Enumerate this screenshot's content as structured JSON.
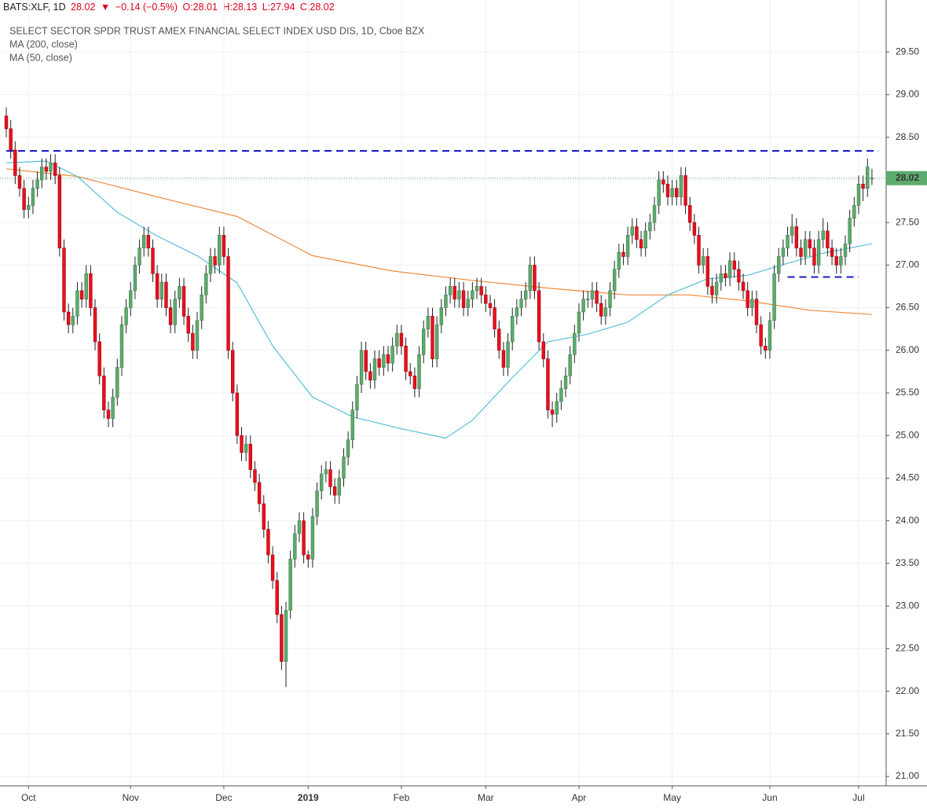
{
  "chart_data": {
    "type": "candlestick",
    "header": {
      "symbol": "BATS:XLF, 1D",
      "last": 28.02,
      "change": "−0.14 (−0.5%)",
      "open": "O:28.01",
      "high": "H:28.13",
      "low": "L:27.94",
      "close": "C:28.02"
    },
    "title": "SELECT SECTOR SPDR TRUST AMEX FINANCIAL SELECT INDEX USD DIS, 1D, Cboe BZX",
    "up_color": "#5dab6e",
    "down_color": "#e8101e",
    "grid": true,
    "xlim": [
      -1.42,
      198.2
    ],
    "ylim": [
      20.89,
      30.11
    ],
    "xticks": [
      {
        "value": 5,
        "label": "Oct"
      },
      {
        "value": 28,
        "label": "Nov"
      },
      {
        "value": 49,
        "label": "Dec"
      },
      {
        "value": 68,
        "label": "2019"
      },
      {
        "value": 89,
        "label": "Feb"
      },
      {
        "value": 108,
        "label": "Mar"
      },
      {
        "value": 129,
        "label": "Apr"
      },
      {
        "value": 150,
        "label": "May"
      },
      {
        "value": 172,
        "label": "Jun"
      },
      {
        "value": 192,
        "label": "Jul"
      }
    ],
    "yticks": [
      {
        "value": 21,
        "label": "21.00"
      },
      {
        "value": 21.5,
        "label": "21.50"
      },
      {
        "value": 22,
        "label": "22.00"
      },
      {
        "value": 22.5,
        "label": "22.50"
      },
      {
        "value": 23,
        "label": "23.00"
      },
      {
        "value": 23.5,
        "label": "23.50"
      },
      {
        "value": 24,
        "label": "24.00"
      },
      {
        "value": 24.5,
        "label": "24.50"
      },
      {
        "value": 25,
        "label": "25.00"
      },
      {
        "value": 25.5,
        "label": "25.50"
      },
      {
        "value": 26,
        "label": "26.00"
      },
      {
        "value": 26.5,
        "label": "26.50"
      },
      {
        "value": 27,
        "label": "27.00"
      },
      {
        "value": 27.5,
        "label": "27.50"
      },
      {
        "value": 28,
        "label": "28.00"
      },
      {
        "value": 28.5,
        "label": "28.50"
      },
      {
        "value": 29,
        "label": "29.00"
      },
      {
        "value": 29.5,
        "label": "29.50"
      }
    ],
    "series": [
      {
        "name": "MA (200, close)",
        "color": "#f08a3c",
        "x": [
          0,
          16,
          34,
          52,
          69,
          87,
          105,
          122,
          140,
          154,
          167,
          181,
          195
        ],
        "values": [
          28.13,
          28.04,
          27.8,
          27.57,
          27.11,
          26.93,
          26.82,
          26.73,
          26.65,
          26.65,
          26.58,
          26.47,
          26.42
        ]
      },
      {
        "name": "MA (50, close)",
        "color": "#56c0d8",
        "x": [
          0,
          9,
          16,
          25,
          34,
          43,
          52,
          60,
          69,
          78,
          89,
          99,
          105,
          114,
          122,
          131,
          140,
          149,
          158,
          167,
          176,
          184,
          195
        ],
        "values": [
          28.2,
          28.22,
          28.04,
          27.62,
          27.34,
          27.11,
          26.79,
          26.05,
          25.45,
          25.22,
          25.08,
          24.97,
          25.18,
          25.68,
          26.1,
          26.19,
          26.33,
          26.65,
          26.84,
          26.88,
          27.02,
          27.14,
          27.25
        ]
      }
    ],
    "levels": [
      {
        "value": 28.34,
        "from": 0,
        "to": 196.5,
        "color": "#1a1acc"
      },
      {
        "value": 26.86,
        "from": 176,
        "to": 192,
        "color": "#1a1acc"
      }
    ],
    "candles": [
      [
        28.75,
        28.85,
        28.5,
        28.6
      ],
      [
        28.6,
        28.7,
        28.25,
        28.35
      ],
      [
        28.35,
        28.45,
        27.95,
        28.05
      ],
      [
        28.05,
        28.15,
        27.8,
        27.9
      ],
      [
        27.9,
        28.0,
        27.55,
        27.65
      ],
      [
        27.65,
        27.8,
        27.55,
        27.7
      ],
      [
        27.7,
        28.0,
        27.6,
        27.9
      ],
      [
        27.9,
        28.1,
        27.8,
        28.0
      ],
      [
        28.0,
        28.25,
        27.9,
        28.15
      ],
      [
        28.15,
        28.25,
        28.0,
        28.1
      ],
      [
        28.1,
        28.3,
        28.0,
        28.2
      ],
      [
        28.2,
        28.3,
        27.95,
        28.05
      ],
      [
        28.05,
        28.15,
        27.1,
        27.2
      ],
      [
        27.2,
        27.3,
        26.35,
        26.45
      ],
      [
        26.45,
        26.55,
        26.2,
        26.3
      ],
      [
        26.3,
        26.5,
        26.2,
        26.4
      ],
      [
        26.4,
        26.8,
        26.3,
        26.7
      ],
      [
        26.7,
        26.8,
        26.5,
        26.6
      ],
      [
        26.6,
        27.0,
        26.5,
        26.9
      ],
      [
        26.9,
        27.0,
        26.4,
        26.5
      ],
      [
        26.5,
        26.6,
        26.0,
        26.1
      ],
      [
        26.1,
        26.2,
        25.6,
        25.7
      ],
      [
        25.7,
        25.8,
        25.2,
        25.3
      ],
      [
        25.3,
        25.4,
        25.1,
        25.2
      ],
      [
        25.2,
        25.55,
        25.1,
        25.45
      ],
      [
        25.45,
        25.9,
        25.35,
        25.8
      ],
      [
        25.8,
        26.4,
        25.7,
        26.3
      ],
      [
        26.3,
        26.6,
        26.2,
        26.5
      ],
      [
        26.5,
        26.8,
        26.4,
        26.7
      ],
      [
        26.7,
        27.1,
        26.6,
        27.0
      ],
      [
        27.0,
        27.3,
        26.9,
        27.2
      ],
      [
        27.2,
        27.45,
        27.1,
        27.35
      ],
      [
        27.35,
        27.45,
        27.1,
        27.2
      ],
      [
        27.2,
        27.3,
        26.8,
        26.9
      ],
      [
        26.9,
        27.0,
        26.5,
        26.6
      ],
      [
        26.6,
        26.9,
        26.5,
        26.8
      ],
      [
        26.8,
        26.9,
        26.4,
        26.5
      ],
      [
        26.5,
        26.6,
        26.2,
        26.3
      ],
      [
        26.3,
        26.7,
        26.2,
        26.6
      ],
      [
        26.6,
        26.85,
        26.5,
        26.75
      ],
      [
        26.75,
        26.85,
        26.3,
        26.4
      ],
      [
        26.4,
        26.5,
        26.1,
        26.2
      ],
      [
        26.2,
        26.3,
        25.9,
        26.0
      ],
      [
        26.0,
        26.45,
        25.9,
        26.35
      ],
      [
        26.35,
        26.75,
        26.25,
        26.65
      ],
      [
        26.65,
        27.0,
        26.55,
        26.9
      ],
      [
        26.9,
        27.2,
        26.8,
        27.1
      ],
      [
        27.1,
        27.2,
        26.9,
        27.0
      ],
      [
        27.0,
        27.45,
        26.9,
        27.35
      ],
      [
        27.35,
        27.45,
        27.0,
        27.1
      ],
      [
        27.1,
        27.2,
        25.9,
        26.0
      ],
      [
        26.0,
        26.1,
        25.4,
        25.5
      ],
      [
        25.5,
        25.6,
        24.9,
        25.0
      ],
      [
        25.0,
        25.1,
        24.7,
        24.8
      ],
      [
        24.8,
        25.0,
        24.7,
        24.9
      ],
      [
        24.9,
        25.0,
        24.5,
        24.6
      ],
      [
        24.6,
        24.7,
        24.35,
        24.45
      ],
      [
        24.45,
        24.55,
        24.1,
        24.2
      ],
      [
        24.2,
        24.3,
        23.8,
        23.9
      ],
      [
        23.9,
        24.0,
        23.5,
        23.6
      ],
      [
        23.6,
        23.7,
        23.2,
        23.3
      ],
      [
        23.3,
        23.4,
        22.8,
        22.9
      ],
      [
        22.9,
        23.0,
        22.25,
        22.35
      ],
      [
        22.35,
        23.05,
        22.05,
        22.95
      ],
      [
        22.95,
        23.65,
        22.85,
        23.55
      ],
      [
        23.55,
        23.95,
        23.45,
        23.85
      ],
      [
        23.85,
        24.1,
        23.75,
        24.0
      ],
      [
        24.0,
        24.1,
        23.5,
        23.6
      ],
      [
        23.6,
        23.65,
        23.45,
        23.55
      ],
      [
        23.55,
        24.15,
        23.45,
        24.05
      ],
      [
        24.05,
        24.45,
        23.95,
        24.35
      ],
      [
        24.35,
        24.65,
        24.25,
        24.55
      ],
      [
        24.55,
        24.7,
        24.45,
        24.6
      ],
      [
        24.6,
        24.7,
        24.3,
        24.4
      ],
      [
        24.4,
        24.5,
        24.2,
        24.3
      ],
      [
        24.3,
        24.6,
        24.2,
        24.5
      ],
      [
        24.5,
        24.85,
        24.4,
        24.75
      ],
      [
        24.75,
        25.05,
        24.65,
        24.95
      ],
      [
        24.95,
        25.4,
        24.85,
        25.3
      ],
      [
        25.3,
        25.7,
        25.2,
        25.6
      ],
      [
        25.6,
        26.1,
        25.5,
        26.0
      ],
      [
        26.0,
        26.1,
        25.65,
        25.75
      ],
      [
        25.75,
        25.85,
        25.55,
        25.65
      ],
      [
        25.65,
        26.0,
        25.55,
        25.9
      ],
      [
        25.9,
        26.0,
        25.7,
        25.8
      ],
      [
        25.8,
        26.05,
        25.7,
        25.95
      ],
      [
        25.95,
        26.05,
        25.75,
        25.85
      ],
      [
        25.85,
        26.15,
        25.75,
        26.05
      ],
      [
        26.05,
        26.3,
        25.95,
        26.2
      ],
      [
        26.2,
        26.3,
        25.95,
        26.05
      ],
      [
        26.05,
        26.15,
        25.65,
        25.75
      ],
      [
        25.75,
        25.85,
        25.6,
        25.7
      ],
      [
        25.7,
        25.8,
        25.45,
        25.55
      ],
      [
        25.55,
        26.05,
        25.45,
        25.95
      ],
      [
        25.95,
        26.35,
        25.85,
        26.25
      ],
      [
        26.25,
        26.5,
        26.15,
        26.4
      ],
      [
        26.4,
        26.5,
        25.8,
        25.9
      ],
      [
        25.9,
        26.4,
        25.8,
        26.3
      ],
      [
        26.3,
        26.6,
        26.2,
        26.5
      ],
      [
        26.5,
        26.75,
        26.4,
        26.65
      ],
      [
        26.65,
        26.85,
        26.55,
        26.75
      ],
      [
        26.75,
        26.85,
        26.5,
        26.6
      ],
      [
        26.6,
        26.8,
        26.5,
        26.7
      ],
      [
        26.7,
        26.8,
        26.4,
        26.5
      ],
      [
        26.5,
        26.7,
        26.4,
        26.6
      ],
      [
        26.6,
        26.8,
        26.5,
        26.7
      ],
      [
        26.7,
        26.85,
        26.6,
        26.75
      ],
      [
        26.75,
        26.85,
        26.55,
        26.65
      ],
      [
        26.65,
        26.75,
        26.45,
        26.55
      ],
      [
        26.55,
        26.65,
        26.4,
        26.5
      ],
      [
        26.5,
        26.6,
        26.15,
        26.25
      ],
      [
        26.25,
        26.35,
        25.9,
        26.0
      ],
      [
        26.0,
        26.1,
        25.7,
        25.8
      ],
      [
        25.8,
        26.2,
        25.7,
        26.1
      ],
      [
        26.1,
        26.5,
        26.0,
        26.4
      ],
      [
        26.4,
        26.6,
        26.3,
        26.5
      ],
      [
        26.5,
        26.7,
        26.4,
        26.6
      ],
      [
        26.6,
        26.8,
        26.5,
        26.7
      ],
      [
        26.7,
        27.1,
        26.6,
        27.0
      ],
      [
        27.0,
        27.1,
        26.6,
        26.7
      ],
      [
        26.7,
        26.8,
        26.0,
        26.1
      ],
      [
        26.1,
        26.2,
        25.8,
        25.9
      ],
      [
        25.9,
        26.0,
        25.2,
        25.3
      ],
      [
        25.3,
        25.4,
        25.1,
        25.25
      ],
      [
        25.25,
        25.5,
        25.15,
        25.4
      ],
      [
        25.4,
        25.65,
        25.3,
        25.55
      ],
      [
        25.55,
        25.8,
        25.45,
        25.7
      ],
      [
        25.7,
        26.05,
        25.6,
        25.95
      ],
      [
        25.95,
        26.3,
        25.85,
        26.2
      ],
      [
        26.2,
        26.55,
        26.1,
        26.45
      ],
      [
        26.45,
        26.7,
        26.35,
        26.6
      ],
      [
        26.6,
        26.7,
        26.5,
        26.6
      ],
      [
        26.6,
        26.8,
        26.5,
        26.7
      ],
      [
        26.7,
        26.8,
        26.45,
        26.55
      ],
      [
        26.55,
        26.65,
        26.3,
        26.4
      ],
      [
        26.4,
        26.6,
        26.3,
        26.5
      ],
      [
        26.5,
        26.8,
        26.4,
        26.7
      ],
      [
        26.7,
        27.05,
        26.6,
        26.95
      ],
      [
        26.95,
        27.25,
        26.85,
        27.15
      ],
      [
        27.15,
        27.25,
        27.0,
        27.1
      ],
      [
        27.1,
        27.45,
        27.0,
        27.35
      ],
      [
        27.35,
        27.55,
        27.25,
        27.45
      ],
      [
        27.45,
        27.55,
        27.2,
        27.3
      ],
      [
        27.3,
        27.4,
        27.1,
        27.2
      ],
      [
        27.2,
        27.5,
        27.1,
        27.4
      ],
      [
        27.4,
        27.6,
        27.3,
        27.5
      ],
      [
        27.5,
        27.8,
        27.4,
        27.7
      ],
      [
        27.7,
        28.1,
        27.6,
        28.0
      ],
      [
        28.0,
        28.1,
        27.85,
        27.95
      ],
      [
        27.95,
        28.05,
        27.7,
        27.8
      ],
      [
        27.8,
        28.0,
        27.7,
        27.9
      ],
      [
        27.9,
        28.0,
        27.7,
        27.8
      ],
      [
        27.8,
        28.15,
        27.7,
        28.05
      ],
      [
        28.05,
        28.15,
        27.6,
        27.7
      ],
      [
        27.7,
        27.8,
        27.4,
        27.5
      ],
      [
        27.5,
        27.6,
        27.25,
        27.35
      ],
      [
        27.35,
        27.45,
        26.9,
        27.0
      ],
      [
        27.0,
        27.2,
        26.9,
        27.1
      ],
      [
        27.1,
        27.2,
        26.65,
        26.75
      ],
      [
        26.75,
        26.85,
        26.55,
        26.65
      ],
      [
        26.65,
        26.9,
        26.55,
        26.8
      ],
      [
        26.8,
        27.0,
        26.7,
        26.9
      ],
      [
        26.9,
        27.0,
        26.75,
        26.85
      ],
      [
        26.85,
        27.15,
        26.75,
        27.05
      ],
      [
        27.05,
        27.15,
        26.85,
        26.95
      ],
      [
        26.95,
        27.05,
        26.7,
        26.8
      ],
      [
        26.8,
        26.9,
        26.6,
        26.7
      ],
      [
        26.7,
        26.8,
        26.4,
        26.5
      ],
      [
        26.5,
        26.7,
        26.4,
        26.6
      ],
      [
        26.6,
        26.7,
        26.2,
        26.3
      ],
      [
        26.3,
        26.4,
        25.95,
        26.05
      ],
      [
        26.05,
        26.15,
        25.9,
        26.0
      ],
      [
        26.0,
        26.45,
        25.9,
        26.35
      ],
      [
        26.35,
        27.0,
        26.25,
        26.9
      ],
      [
        26.9,
        27.2,
        26.8,
        27.1
      ],
      [
        27.1,
        27.3,
        27.0,
        27.2
      ],
      [
        27.2,
        27.45,
        27.1,
        27.35
      ],
      [
        27.35,
        27.6,
        27.25,
        27.45
      ],
      [
        27.45,
        27.55,
        27.1,
        27.2
      ],
      [
        27.2,
        27.3,
        27.0,
        27.1
      ],
      [
        27.1,
        27.4,
        27.0,
        27.3
      ],
      [
        27.3,
        27.4,
        27.1,
        27.2
      ],
      [
        27.2,
        27.3,
        26.9,
        27.0
      ],
      [
        27.0,
        27.4,
        26.9,
        27.3
      ],
      [
        27.3,
        27.55,
        27.2,
        27.4
      ],
      [
        27.4,
        27.5,
        27.1,
        27.2
      ],
      [
        27.2,
        27.3,
        27.0,
        27.1
      ],
      [
        27.1,
        27.2,
        26.9,
        27.0
      ],
      [
        27.0,
        27.2,
        26.9,
        27.1
      ],
      [
        27.1,
        27.35,
        27.0,
        27.25
      ],
      [
        27.25,
        27.65,
        27.15,
        27.55
      ],
      [
        27.55,
        27.8,
        27.45,
        27.7
      ],
      [
        27.7,
        28.05,
        27.6,
        27.95
      ],
      [
        27.95,
        28.05,
        27.75,
        27.9
      ],
      [
        27.9,
        28.25,
        27.8,
        28.15
      ],
      [
        28.01,
        28.13,
        27.94,
        28.02
      ]
    ]
  }
}
